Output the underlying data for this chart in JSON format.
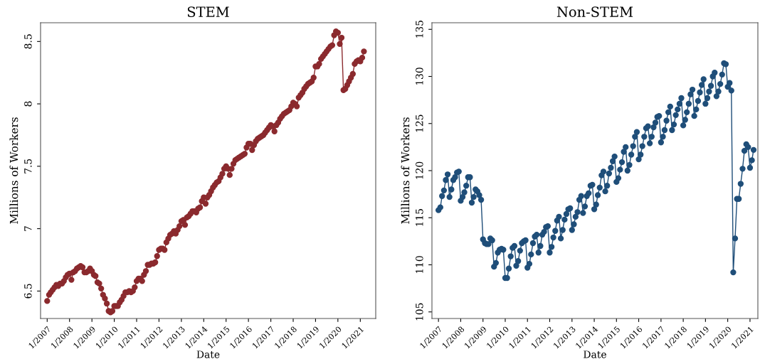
{
  "chart_data": [
    {
      "type": "line",
      "title": "STEM",
      "xlabel": "Date",
      "ylabel": "Millions of Workers",
      "marker": "circle",
      "line_style": "solid",
      "grid": false,
      "legend": false,
      "x": [
        "2007-01",
        "2007-02",
        "2007-03",
        "2007-04",
        "2007-05",
        "2007-06",
        "2007-07",
        "2007-08",
        "2007-09",
        "2007-10",
        "2007-11",
        "2007-12",
        "2008-01",
        "2008-02",
        "2008-03",
        "2008-04",
        "2008-05",
        "2008-06",
        "2008-07",
        "2008-08",
        "2008-09",
        "2008-10",
        "2008-11",
        "2008-12",
        "2009-01",
        "2009-02",
        "2009-03",
        "2009-04",
        "2009-05",
        "2009-06",
        "2009-07",
        "2009-08",
        "2009-09",
        "2009-10",
        "2009-11",
        "2009-12",
        "2010-01",
        "2010-02",
        "2010-03",
        "2010-04",
        "2010-05",
        "2010-06",
        "2010-07",
        "2010-08",
        "2010-09",
        "2010-10",
        "2010-11",
        "2010-12",
        "2011-01",
        "2011-02",
        "2011-03",
        "2011-04",
        "2011-05",
        "2011-06",
        "2011-07",
        "2011-08",
        "2011-09",
        "2011-10",
        "2011-11",
        "2011-12",
        "2012-01",
        "2012-02",
        "2012-03",
        "2012-04",
        "2012-05",
        "2012-06",
        "2012-07",
        "2012-08",
        "2012-09",
        "2012-10",
        "2012-11",
        "2012-12",
        "2013-01",
        "2013-02",
        "2013-03",
        "2013-04",
        "2013-05",
        "2013-06",
        "2013-07",
        "2013-08",
        "2013-09",
        "2013-10",
        "2013-11",
        "2013-12",
        "2014-01",
        "2014-02",
        "2014-03",
        "2014-04",
        "2014-05",
        "2014-06",
        "2014-07",
        "2014-08",
        "2014-09",
        "2014-10",
        "2014-11",
        "2014-12",
        "2015-01",
        "2015-02",
        "2015-03",
        "2015-04",
        "2015-05",
        "2015-06",
        "2015-07",
        "2015-08",
        "2015-09",
        "2015-10",
        "2015-11",
        "2015-12",
        "2016-01",
        "2016-02",
        "2016-03",
        "2016-04",
        "2016-05",
        "2016-06",
        "2016-07",
        "2016-08",
        "2016-09",
        "2016-10",
        "2016-11",
        "2016-12",
        "2017-01",
        "2017-02",
        "2017-03",
        "2017-04",
        "2017-05",
        "2017-06",
        "2017-07",
        "2017-08",
        "2017-09",
        "2017-10",
        "2017-11",
        "2017-12",
        "2018-01",
        "2018-02",
        "2018-03",
        "2018-04",
        "2018-05",
        "2018-06",
        "2018-07",
        "2018-08",
        "2018-09",
        "2018-10",
        "2018-11",
        "2018-12",
        "2019-01",
        "2019-02",
        "2019-03",
        "2019-04",
        "2019-05",
        "2019-06",
        "2019-07",
        "2019-08",
        "2019-09",
        "2019-10",
        "2019-11",
        "2019-12",
        "2020-01",
        "2020-02",
        "2020-03",
        "2020-04",
        "2020-05",
        "2020-06",
        "2020-07",
        "2020-08",
        "2020-09",
        "2020-10",
        "2020-11",
        "2020-12",
        "2021-01",
        "2021-02",
        "2021-03"
      ],
      "series": [
        {
          "color": "#8b2a2e",
          "values": [
            6.42,
            6.47,
            6.49,
            6.51,
            6.53,
            6.55,
            6.54,
            6.56,
            6.56,
            6.58,
            6.61,
            6.63,
            6.64,
            6.59,
            6.65,
            6.66,
            6.68,
            6.69,
            6.7,
            6.69,
            6.65,
            6.65,
            6.66,
            6.68,
            6.66,
            6.63,
            6.62,
            6.57,
            6.56,
            6.52,
            6.47,
            6.44,
            6.4,
            6.34,
            6.33,
            6.34,
            6.38,
            6.38,
            6.38,
            6.41,
            6.43,
            6.46,
            6.49,
            6.49,
            6.5,
            6.49,
            6.5,
            6.53,
            6.58,
            6.6,
            6.6,
            6.58,
            6.63,
            6.66,
            6.71,
            6.71,
            6.72,
            6.72,
            6.73,
            6.78,
            6.83,
            6.84,
            6.84,
            6.83,
            6.89,
            6.92,
            6.95,
            6.96,
            6.98,
            6.96,
            6.99,
            7.02,
            7.06,
            7.07,
            7.03,
            7.09,
            7.1,
            7.12,
            7.14,
            7.14,
            7.13,
            7.16,
            7.17,
            7.22,
            7.25,
            7.2,
            7.25,
            7.27,
            7.3,
            7.33,
            7.35,
            7.37,
            7.38,
            7.41,
            7.44,
            7.48,
            7.5,
            7.48,
            7.43,
            7.48,
            7.52,
            7.55,
            7.56,
            7.57,
            7.58,
            7.59,
            7.6,
            7.65,
            7.68,
            7.68,
            7.63,
            7.67,
            7.7,
            7.72,
            7.73,
            7.74,
            7.75,
            7.77,
            7.79,
            7.81,
            7.83,
            7.82,
            7.78,
            7.83,
            7.85,
            7.88,
            7.9,
            7.92,
            7.93,
            7.94,
            7.95,
            7.98,
            8.01,
            8.0,
            7.98,
            8.05,
            8.07,
            8.09,
            8.12,
            8.14,
            8.16,
            8.17,
            8.18,
            8.21,
            8.3,
            8.3,
            8.32,
            8.36,
            8.38,
            8.4,
            8.42,
            8.44,
            8.46,
            8.47,
            8.55,
            8.58,
            8.57,
            8.48,
            8.53,
            8.11,
            8.12,
            8.15,
            8.18,
            8.21,
            8.24,
            8.32,
            8.34,
            8.35,
            8.34,
            8.37,
            8.42
          ]
        }
      ],
      "xlim": [
        "2006-09-15",
        "2021-09-10"
      ],
      "ylim": [
        6.28,
        8.65
      ],
      "yticks": [
        {
          "value": 6.5,
          "label": "6.5"
        },
        {
          "value": 7,
          "label": "7"
        },
        {
          "value": 7.5,
          "label": "7.5"
        },
        {
          "value": 8,
          "label": "8"
        },
        {
          "value": 8.5,
          "label": "8.5"
        }
      ],
      "xticks": [
        {
          "value": "2007-01",
          "label": "1/2007"
        },
        {
          "value": "2008-01",
          "label": "1/2008"
        },
        {
          "value": "2009-01",
          "label": "1/2009"
        },
        {
          "value": "2010-01",
          "label": "1/2010"
        },
        {
          "value": "2011-01",
          "label": "1/2011"
        },
        {
          "value": "2012-01",
          "label": "1/2012"
        },
        {
          "value": "2013-01",
          "label": "1/2013"
        },
        {
          "value": "2014-01",
          "label": "1/2014"
        },
        {
          "value": "2015-01",
          "label": "1/2015"
        },
        {
          "value": "2016-01",
          "label": "1/2016"
        },
        {
          "value": "2017-01",
          "label": "1/2017"
        },
        {
          "value": "2018-01",
          "label": "1/2018"
        },
        {
          "value": "2019-01",
          "label": "1/2019"
        },
        {
          "value": "2020-01",
          "label": "1/2020"
        },
        {
          "value": "2021-01",
          "label": "1/2021"
        }
      ]
    },
    {
      "type": "line",
      "title": "Non-STEM",
      "xlabel": "Date",
      "ylabel": "Millions of Workers",
      "marker": "circle",
      "line_style": "solid",
      "grid": false,
      "legend": false,
      "x": [
        "2007-01",
        "2007-02",
        "2007-03",
        "2007-04",
        "2007-05",
        "2007-06",
        "2007-07",
        "2007-08",
        "2007-09",
        "2007-10",
        "2007-11",
        "2007-12",
        "2008-01",
        "2008-02",
        "2008-03",
        "2008-04",
        "2008-05",
        "2008-06",
        "2008-07",
        "2008-08",
        "2008-09",
        "2008-10",
        "2008-11",
        "2008-12",
        "2009-01",
        "2009-02",
        "2009-03",
        "2009-04",
        "2009-05",
        "2009-06",
        "2009-07",
        "2009-08",
        "2009-09",
        "2009-10",
        "2009-11",
        "2009-12",
        "2010-01",
        "2010-02",
        "2010-03",
        "2010-04",
        "2010-05",
        "2010-06",
        "2010-07",
        "2010-08",
        "2010-09",
        "2010-10",
        "2010-11",
        "2010-12",
        "2011-01",
        "2011-02",
        "2011-03",
        "2011-04",
        "2011-05",
        "2011-06",
        "2011-07",
        "2011-08",
        "2011-09",
        "2011-10",
        "2011-11",
        "2011-12",
        "2012-01",
        "2012-02",
        "2012-03",
        "2012-04",
        "2012-05",
        "2012-06",
        "2012-07",
        "2012-08",
        "2012-09",
        "2012-10",
        "2012-11",
        "2012-12",
        "2013-01",
        "2013-02",
        "2013-03",
        "2013-04",
        "2013-05",
        "2013-06",
        "2013-07",
        "2013-08",
        "2013-09",
        "2013-10",
        "2013-11",
        "2013-12",
        "2014-01",
        "2014-02",
        "2014-03",
        "2014-04",
        "2014-05",
        "2014-06",
        "2014-07",
        "2014-08",
        "2014-09",
        "2014-10",
        "2014-11",
        "2014-12",
        "2015-01",
        "2015-02",
        "2015-03",
        "2015-04",
        "2015-05",
        "2015-06",
        "2015-07",
        "2015-08",
        "2015-09",
        "2015-10",
        "2015-11",
        "2015-12",
        "2016-01",
        "2016-02",
        "2016-03",
        "2016-04",
        "2016-05",
        "2016-06",
        "2016-07",
        "2016-08",
        "2016-09",
        "2016-10",
        "2016-11",
        "2016-12",
        "2017-01",
        "2017-02",
        "2017-03",
        "2017-04",
        "2017-05",
        "2017-06",
        "2017-07",
        "2017-08",
        "2017-09",
        "2017-10",
        "2017-11",
        "2017-12",
        "2018-01",
        "2018-02",
        "2018-03",
        "2018-04",
        "2018-05",
        "2018-06",
        "2018-07",
        "2018-08",
        "2018-09",
        "2018-10",
        "2018-11",
        "2018-12",
        "2019-01",
        "2019-02",
        "2019-03",
        "2019-04",
        "2019-05",
        "2019-06",
        "2019-07",
        "2019-08",
        "2019-09",
        "2019-10",
        "2019-11",
        "2019-12",
        "2020-01",
        "2020-02",
        "2020-03",
        "2020-04",
        "2020-05",
        "2020-06",
        "2020-07",
        "2020-08",
        "2020-09",
        "2020-10",
        "2020-11",
        "2020-12",
        "2021-01",
        "2021-02",
        "2021-03"
      ],
      "series": [
        {
          "color": "#1f4e79",
          "values": [
            115.8,
            116.1,
            117.3,
            117.9,
            119.0,
            119.6,
            117.2,
            118.0,
            119.0,
            119.3,
            119.8,
            119.9,
            116.8,
            117.2,
            117.7,
            118.4,
            119.3,
            119.3,
            116.6,
            117.2,
            118.0,
            117.8,
            117.4,
            116.9,
            112.7,
            112.3,
            112.2,
            112.2,
            112.8,
            112.6,
            109.8,
            110.2,
            111.3,
            111.6,
            111.7,
            111.6,
            108.6,
            108.6,
            109.6,
            110.9,
            111.8,
            112.0,
            109.9,
            110.4,
            111.5,
            112.3,
            112.5,
            112.6,
            109.7,
            110.1,
            111.1,
            112.3,
            113.0,
            113.2,
            111.3,
            112.0,
            113.2,
            113.5,
            114.0,
            114.1,
            111.3,
            111.9,
            112.9,
            113.6,
            114.7,
            115.1,
            112.8,
            113.7,
            114.8,
            115.4,
            115.9,
            116.0,
            113.7,
            114.3,
            115.1,
            115.6,
            116.9,
            117.3,
            115.5,
            116.2,
            117.3,
            117.6,
            118.4,
            118.5,
            115.9,
            116.4,
            117.4,
            118.2,
            119.5,
            119.9,
            117.8,
            118.4,
            119.7,
            120.3,
            121.0,
            121.5,
            118.8,
            119.2,
            120.1,
            120.9,
            122.0,
            122.5,
            120.0,
            120.6,
            121.7,
            122.6,
            123.6,
            124.1,
            121.2,
            121.7,
            122.6,
            123.6,
            124.5,
            124.7,
            122.9,
            123.6,
            124.6,
            125.1,
            125.7,
            125.8,
            123.0,
            123.6,
            124.3,
            125.3,
            126.2,
            126.8,
            124.3,
            124.9,
            125.9,
            126.5,
            127.1,
            127.7,
            124.8,
            125.4,
            126.2,
            127.1,
            128.1,
            128.6,
            125.8,
            126.5,
            127.4,
            128.3,
            129.1,
            129.7,
            127.1,
            127.7,
            128.4,
            129.0,
            130.0,
            130.4,
            127.9,
            128.4,
            129.2,
            130.2,
            131.4,
            131.3,
            128.9,
            129.3,
            128.5,
            109.2,
            112.8,
            117.0,
            117.0,
            118.6,
            120.2,
            122.1,
            122.8,
            122.5,
            120.3,
            121.1,
            122.2
          ]
        }
      ],
      "xlim": [
        "2006-09-16",
        "2021-05-10"
      ],
      "ylim": [
        104.3,
        135.7
      ],
      "yticks": [
        105,
        110,
        115,
        120,
        125,
        130,
        135
      ],
      "xticks": [
        {
          "value": "2007-01",
          "label": "1/2007"
        },
        {
          "value": "2008-01",
          "label": "1/2008"
        },
        {
          "value": "2009-01",
          "label": "1/2009"
        },
        {
          "value": "2010-01",
          "label": "1/2010"
        },
        {
          "value": "2011-01",
          "label": "1/2011"
        },
        {
          "value": "2012-01",
          "label": "1/2012"
        },
        {
          "value": "2013-01",
          "label": "1/2013"
        },
        {
          "value": "2014-01",
          "label": "1/2014"
        },
        {
          "value": "2015-01",
          "label": "1/2015"
        },
        {
          "value": "2016-01",
          "label": "1/2016"
        },
        {
          "value": "2017-01",
          "label": "1/2017"
        },
        {
          "value": "2018-01",
          "label": "1/2018"
        },
        {
          "value": "2019-01",
          "label": "1/2019"
        },
        {
          "value": "2020-01",
          "label": "1/2020"
        },
        {
          "value": "2021-01",
          "label": "1/2021"
        }
      ]
    }
  ]
}
